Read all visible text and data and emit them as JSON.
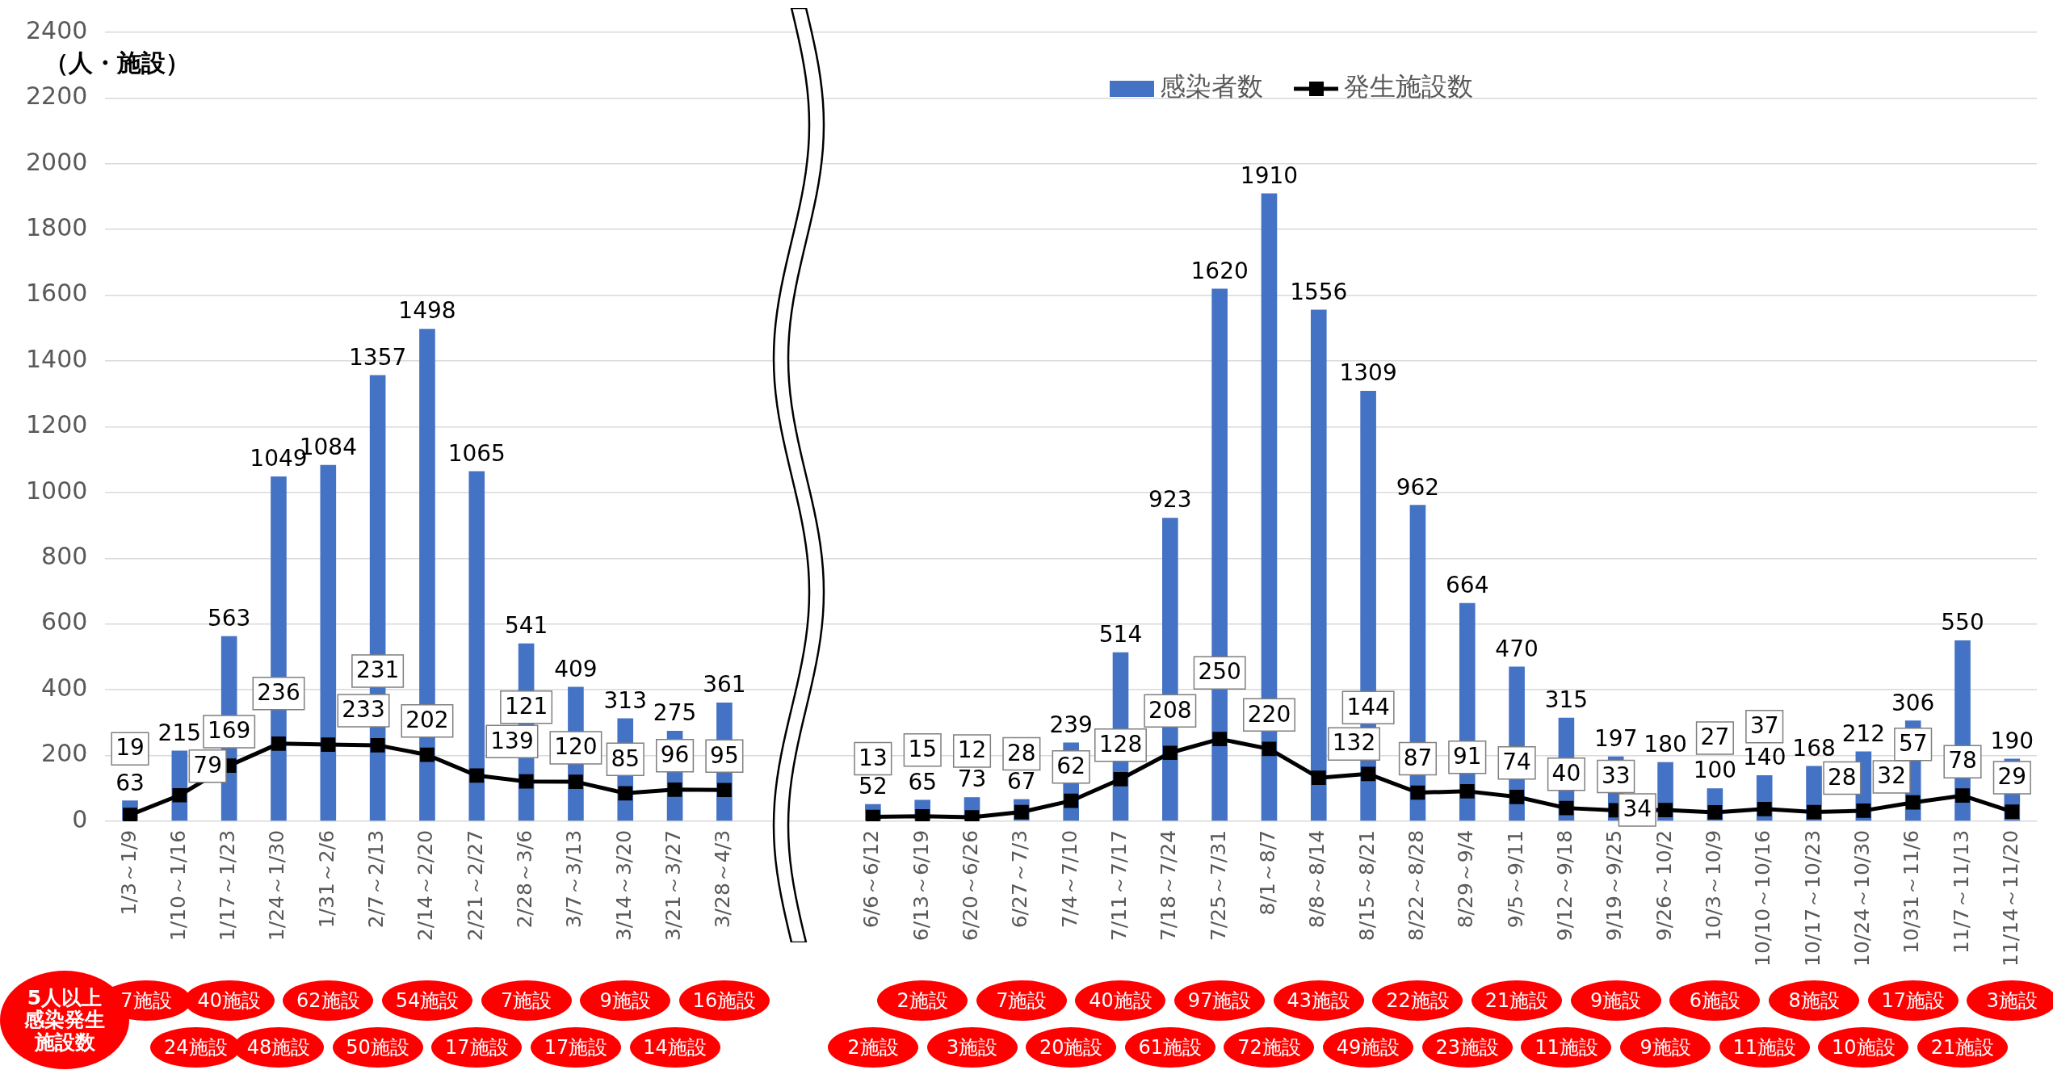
{
  "chart_data": {
    "type": "bar",
    "ylabel": "（人・施設）",
    "categories": [
      "1/3～1/9",
      "1/10～1/16",
      "1/17～1/23",
      "1/24～1/30",
      "1/31～2/6",
      "2/7～2/13",
      "2/14～2/20",
      "2/21～2/27",
      "2/28～3/6",
      "3/7～3/13",
      "3/14～3/20",
      "3/21～3/27",
      "3/28～4/3",
      null,
      null,
      "6/6～6/12",
      "6/13～6/19",
      "6/20～6/26",
      "6/27～7/3",
      "7/4～7/10",
      "7/11～7/17",
      "7/18～7/24",
      "7/25～7/31",
      "8/1～8/7",
      "8/8～8/14",
      "8/15～8/21",
      "8/22～8/28",
      "8/29～9/4",
      "9/5～9/11",
      "9/12～9/18",
      "9/19～9/25",
      "9/26～10/2",
      "10/3～10/9",
      "10/10～10/16",
      "10/17～10/23",
      "10/24～10/30",
      "10/31～11/6",
      "11/7～11/13",
      "11/14～11/20"
    ],
    "series": [
      {
        "name": "感染者数",
        "color": "#4472c4",
        "values": [
          63,
          215,
          563,
          1049,
          1084,
          1357,
          1498,
          1065,
          541,
          409,
          313,
          275,
          361,
          null,
          null,
          52,
          65,
          73,
          67,
          239,
          514,
          923,
          1620,
          1910,
          1556,
          1309,
          962,
          664,
          470,
          315,
          197,
          180,
          100,
          140,
          168,
          212,
          306,
          550,
          190
        ]
      },
      {
        "name": "発生施設数",
        "type": "line",
        "color": "#000000",
        "marker": "square",
        "values": [
          19,
          79,
          169,
          236,
          233,
          231,
          202,
          139,
          121,
          120,
          85,
          96,
          95,
          null,
          null,
          13,
          15,
          12,
          28,
          62,
          128,
          208,
          250,
          220,
          132,
          144,
          87,
          91,
          74,
          40,
          33,
          34,
          27,
          37,
          28,
          32,
          57,
          78,
          29
        ]
      }
    ],
    "ylim": [
      0,
      2400
    ],
    "yticks": [
      0,
      200,
      400,
      600,
      800,
      1000,
      1200,
      1400,
      1600,
      1800,
      2000,
      2200,
      2400
    ],
    "grid": "y",
    "legend": "top right",
    "data_labels": true,
    "annotations": [
      "5人以上感染発生施設数",
      "7施設",
      "24施設",
      "40施設",
      "48施設",
      "62施設",
      "50施設",
      "54施設",
      "17施設",
      "7施設",
      "17施設",
      "9施設",
      "14施設",
      "16施設",
      "2施設",
      "2施設",
      "3施設",
      "7施設",
      "20施設",
      "40施設",
      "61施設",
      "97施設",
      "72施設",
      "43施設",
      "49施設",
      "22施設",
      "23施設",
      "21施設",
      "11施設",
      "9施設",
      "9施設",
      "6施設",
      "11施設",
      "8施設",
      "10施設",
      "17施設",
      "21施設",
      "3施設"
    ]
  }
}
